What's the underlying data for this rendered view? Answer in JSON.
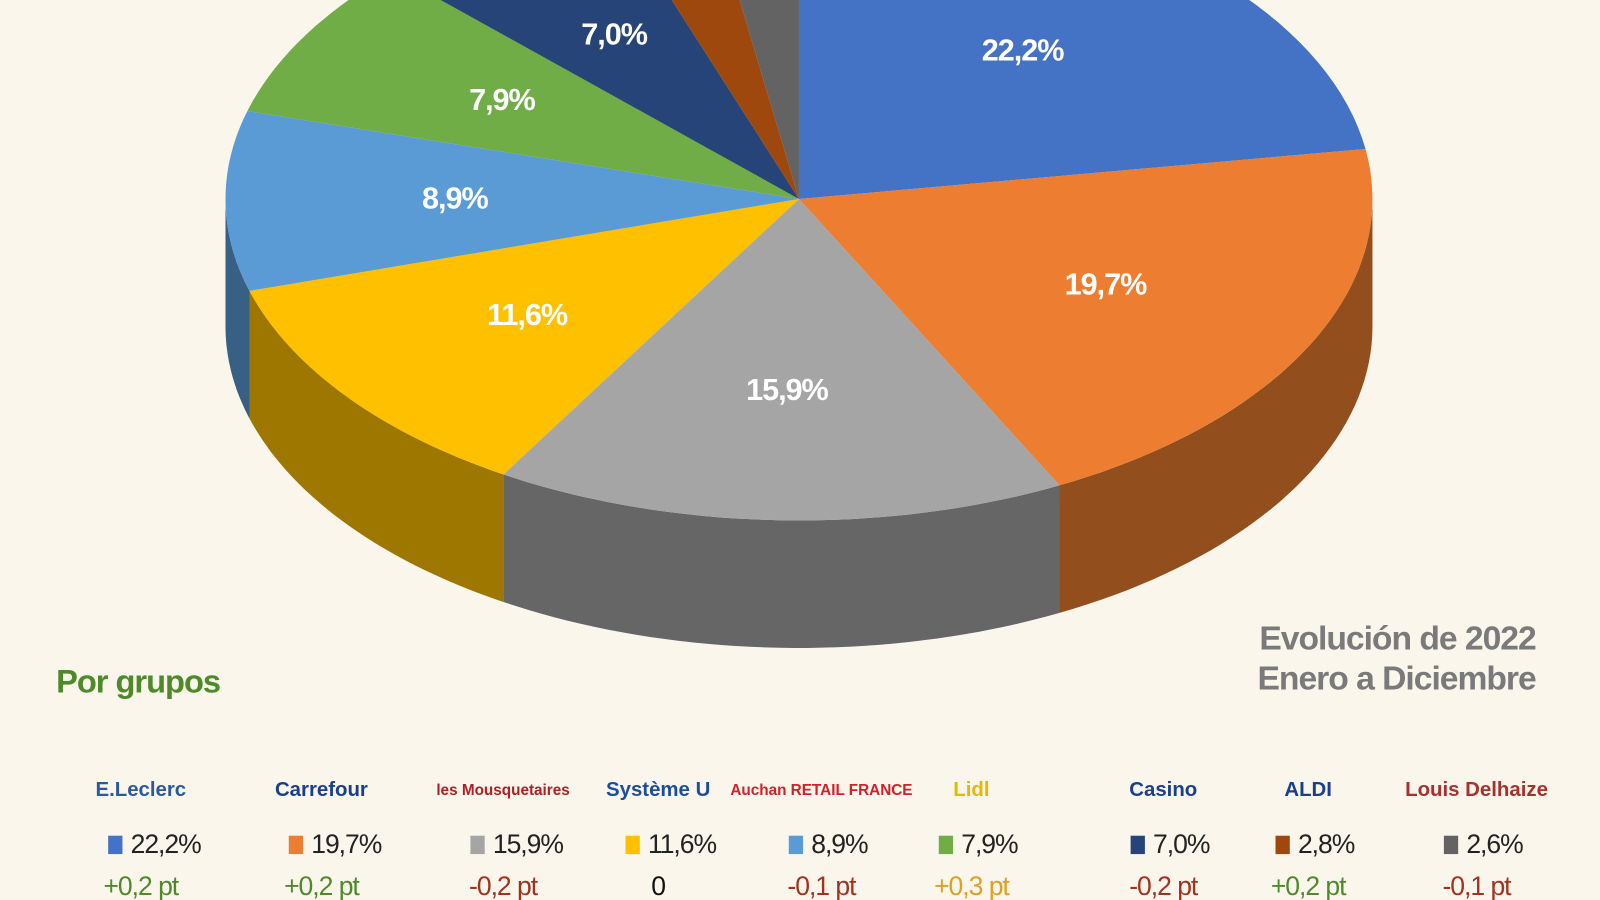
{
  "chart_data": {
    "type": "pie",
    "title": "Por grupos",
    "annotations": [
      "Evolución de 2022",
      "Enero a Diciembre"
    ],
    "categories": [
      "E.Leclerc",
      "Carrefour",
      "les Mousquetaires",
      "Système U",
      "Auchan RETAIL FRANCE",
      "Lidl",
      "Casino",
      "ALDI",
      "Louis Delhaize"
    ],
    "values": [
      22.2,
      19.7,
      15.9,
      11.6,
      8.9,
      7.9,
      7.0,
      2.8,
      2.6
    ],
    "value_labels": [
      "22,2%",
      "19,7%",
      "15,9%",
      "11,6%",
      "8,9%",
      "7,9%",
      "7,0%",
      "2,8%",
      "2,6%"
    ],
    "colors": [
      "#4472c4",
      "#ed7d31",
      "#a5a5a5",
      "#ffc000",
      "#5b9bd5",
      "#70ad47",
      "#264478",
      "#9e480e",
      "#636363"
    ],
    "changes": [
      "+0,2 pt",
      "+0,2 pt",
      "-0,2 pt",
      "0",
      "-0,1 pt",
      "+0,3 pt",
      "-0,2 pt",
      "+0,2 pt",
      "-0,1 pt"
    ],
    "change_colors": [
      "#4e8a2a",
      "#4e8a2a",
      "#a0321e",
      "#111111",
      "#a0321e",
      "#e0a020",
      "#a0321e",
      "#4e8a2a",
      "#a0321e"
    ],
    "logo_colors": [
      "#2a5aa0",
      "#1a3f8f",
      "#b01e23",
      "#1b4f9c",
      "#d0202a",
      "#e6b800",
      "#1a3f8f",
      "#1a3f8f",
      "#a8312e"
    ]
  }
}
